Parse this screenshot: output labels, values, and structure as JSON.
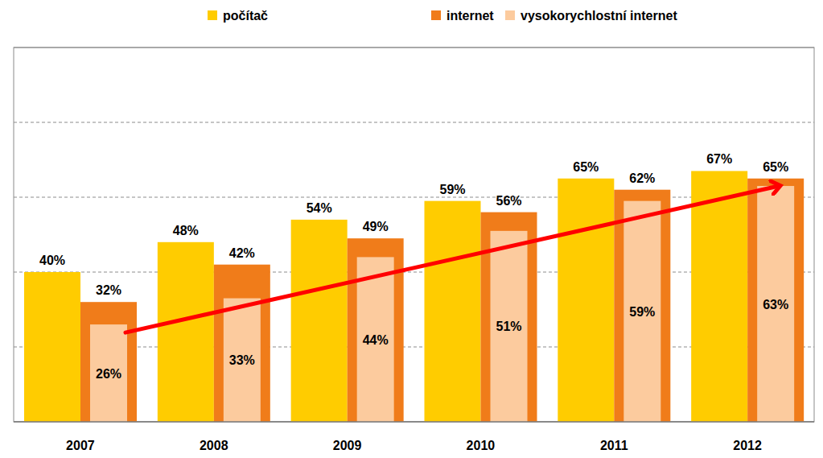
{
  "chart_data": {
    "type": "bar",
    "categories": [
      "2007",
      "2008",
      "2009",
      "2010",
      "2011",
      "2012"
    ],
    "series": [
      {
        "name": "počítač",
        "color": "#FFCC00",
        "values": [
          40,
          48,
          54,
          59,
          65,
          67
        ],
        "value_labels": [
          "40%",
          "48%",
          "54%",
          "59%",
          "65%",
          "67%"
        ]
      },
      {
        "name": "internet",
        "color": "#F07C1A",
        "values": [
          32,
          42,
          49,
          56,
          62,
          65
        ],
        "value_labels": [
          "32%",
          "42%",
          "49%",
          "56%",
          "62%",
          "65%"
        ]
      },
      {
        "name": "vysokorychlostní internet",
        "color": "#FCCB9E",
        "values": [
          26,
          33,
          44,
          51,
          59,
          63
        ],
        "value_labels": [
          "26%",
          "33%",
          "44%",
          "51%",
          "59%",
          "63%"
        ]
      }
    ],
    "ylim": [
      0,
      100
    ],
    "yticks": [
      0,
      20,
      40,
      60,
      80,
      100
    ],
    "grid": true,
    "legend": "top",
    "data_labels": true,
    "tick_labels": "x"
  }
}
